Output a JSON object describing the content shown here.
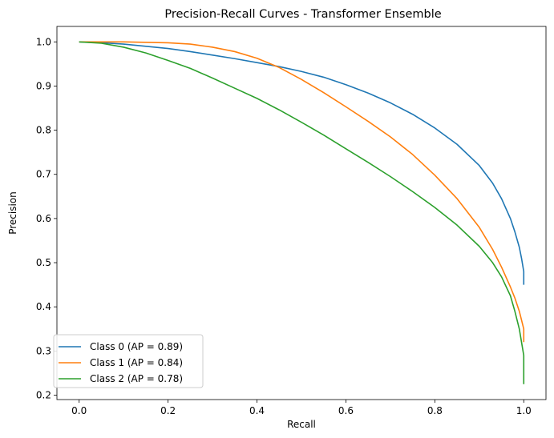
{
  "chart_data": {
    "type": "line",
    "title": "Precision-Recall Curves - Transformer Ensemble",
    "xlabel": "Recall",
    "ylabel": "Precision",
    "xlim": [
      -0.05,
      1.05
    ],
    "ylim": [
      0.19,
      1.035
    ],
    "xticks": [
      0.0,
      0.2,
      0.4,
      0.6,
      0.8,
      1.0
    ],
    "xtick_labels": [
      "0.0",
      "0.2",
      "0.4",
      "0.6",
      "0.8",
      "1.0"
    ],
    "yticks": [
      0.2,
      0.3,
      0.4,
      0.5,
      0.6,
      0.7,
      0.8,
      0.9,
      1.0
    ],
    "ytick_labels": [
      "0.2",
      "0.3",
      "0.4",
      "0.5",
      "0.6",
      "0.7",
      "0.8",
      "0.9",
      "1.0"
    ],
    "grid": false,
    "legend_position": "lower-left",
    "series": [
      {
        "name": "Class 0 (AP = 0.89)",
        "color": "#1f77b4",
        "x": [
          0.0,
          0.05,
          0.1,
          0.15,
          0.2,
          0.25,
          0.3,
          0.35,
          0.4,
          0.45,
          0.5,
          0.55,
          0.6,
          0.65,
          0.7,
          0.75,
          0.8,
          0.85,
          0.9,
          0.93,
          0.95,
          0.97,
          0.98,
          0.99,
          0.995,
          1.0,
          1.0
        ],
        "y": [
          1.0,
          0.998,
          0.995,
          0.99,
          0.985,
          0.978,
          0.97,
          0.962,
          0.953,
          0.944,
          0.933,
          0.92,
          0.903,
          0.884,
          0.862,
          0.836,
          0.805,
          0.768,
          0.72,
          0.68,
          0.645,
          0.6,
          0.57,
          0.535,
          0.51,
          0.48,
          0.45
        ]
      },
      {
        "name": "Class 1 (AP = 0.84)",
        "color": "#ff7f0e",
        "x": [
          0.0,
          0.1,
          0.2,
          0.25,
          0.3,
          0.35,
          0.4,
          0.45,
          0.5,
          0.55,
          0.6,
          0.65,
          0.7,
          0.75,
          0.8,
          0.85,
          0.9,
          0.93,
          0.95,
          0.97,
          0.98,
          0.99,
          0.995,
          1.0,
          1.0
        ],
        "y": [
          1.0,
          1.0,
          0.998,
          0.995,
          0.988,
          0.978,
          0.963,
          0.942,
          0.915,
          0.885,
          0.853,
          0.82,
          0.785,
          0.745,
          0.698,
          0.645,
          0.58,
          0.53,
          0.49,
          0.445,
          0.42,
          0.39,
          0.37,
          0.35,
          0.32
        ]
      },
      {
        "name": "Class 2 (AP = 0.78)",
        "color": "#2ca02c",
        "x": [
          0.0,
          0.05,
          0.1,
          0.15,
          0.2,
          0.25,
          0.3,
          0.35,
          0.4,
          0.45,
          0.5,
          0.55,
          0.6,
          0.65,
          0.7,
          0.75,
          0.8,
          0.85,
          0.9,
          0.93,
          0.95,
          0.97,
          0.98,
          0.99,
          0.995,
          1.0,
          1.0
        ],
        "y": [
          1.0,
          0.997,
          0.988,
          0.975,
          0.958,
          0.94,
          0.918,
          0.895,
          0.872,
          0.846,
          0.818,
          0.789,
          0.758,
          0.727,
          0.695,
          0.661,
          0.625,
          0.585,
          0.537,
          0.5,
          0.468,
          0.425,
          0.39,
          0.35,
          0.32,
          0.29,
          0.225
        ]
      }
    ]
  }
}
